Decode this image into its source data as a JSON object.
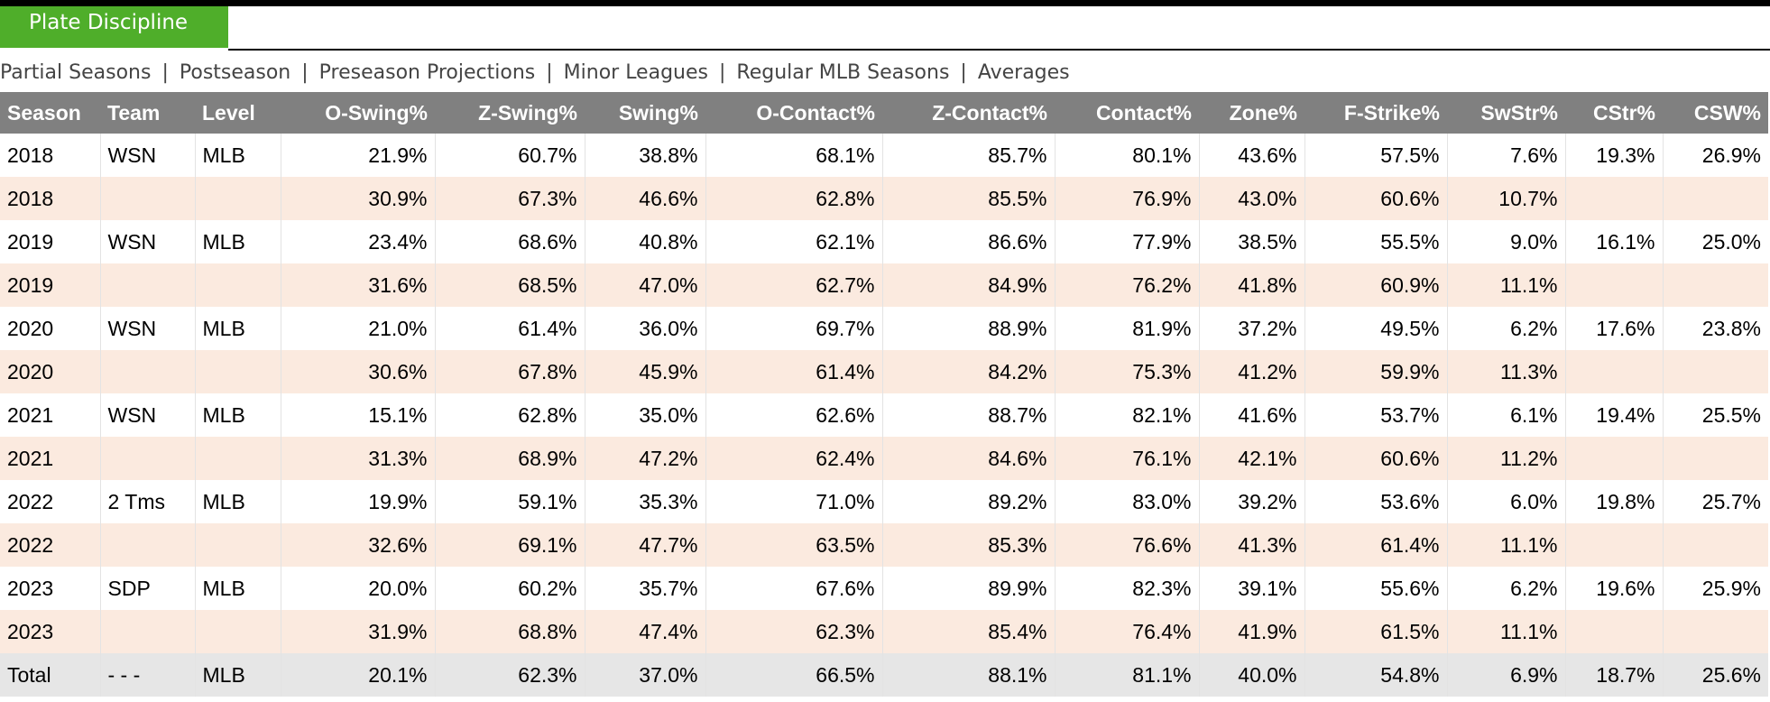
{
  "section": {
    "title": "Plate Discipline"
  },
  "filters": [
    {
      "label": "Partial Seasons"
    },
    {
      "label": "Postseason"
    },
    {
      "label": "Preseason Projections"
    },
    {
      "label": "Minor Leagues"
    },
    {
      "label": "Regular MLB Seasons"
    },
    {
      "label": "Averages"
    }
  ],
  "filter_separator": "|",
  "table": {
    "columns": [
      {
        "key": "season",
        "label": "Season",
        "align": "l"
      },
      {
        "key": "team",
        "label": "Team",
        "align": "l"
      },
      {
        "key": "level",
        "label": "Level",
        "align": "l"
      },
      {
        "key": "o_swing",
        "label": "O-Swing%",
        "align": "r"
      },
      {
        "key": "z_swing",
        "label": "Z-Swing%",
        "align": "r"
      },
      {
        "key": "swing",
        "label": "Swing%",
        "align": "r"
      },
      {
        "key": "o_contact",
        "label": "O-Contact%",
        "align": "r"
      },
      {
        "key": "z_contact",
        "label": "Z-Contact%",
        "align": "r"
      },
      {
        "key": "contact",
        "label": "Contact%",
        "align": "r"
      },
      {
        "key": "zone",
        "label": "Zone%",
        "align": "r"
      },
      {
        "key": "f_strike",
        "label": "F-Strike%",
        "align": "r"
      },
      {
        "key": "swstr",
        "label": "SwStr%",
        "align": "r"
      },
      {
        "key": "cstr",
        "label": "CStr%",
        "align": "r"
      },
      {
        "key": "csw",
        "label": "CSW%",
        "align": "r"
      }
    ],
    "rows": [
      {
        "style": "white",
        "cells": [
          "2018",
          "WSN",
          "MLB",
          "21.9%",
          "60.7%",
          "38.8%",
          "68.1%",
          "85.7%",
          "80.1%",
          "43.6%",
          "57.5%",
          "7.6%",
          "19.3%",
          "26.9%"
        ]
      },
      {
        "style": "peach",
        "cells": [
          "2018",
          "",
          "",
          "30.9%",
          "67.3%",
          "46.6%",
          "62.8%",
          "85.5%",
          "76.9%",
          "43.0%",
          "60.6%",
          "10.7%",
          "",
          ""
        ]
      },
      {
        "style": "white",
        "cells": [
          "2019",
          "WSN",
          "MLB",
          "23.4%",
          "68.6%",
          "40.8%",
          "62.1%",
          "86.6%",
          "77.9%",
          "38.5%",
          "55.5%",
          "9.0%",
          "16.1%",
          "25.0%"
        ]
      },
      {
        "style": "peach",
        "cells": [
          "2019",
          "",
          "",
          "31.6%",
          "68.5%",
          "47.0%",
          "62.7%",
          "84.9%",
          "76.2%",
          "41.8%",
          "60.9%",
          "11.1%",
          "",
          ""
        ]
      },
      {
        "style": "white",
        "cells": [
          "2020",
          "WSN",
          "MLB",
          "21.0%",
          "61.4%",
          "36.0%",
          "69.7%",
          "88.9%",
          "81.9%",
          "37.2%",
          "49.5%",
          "6.2%",
          "17.6%",
          "23.8%"
        ]
      },
      {
        "style": "peach",
        "cells": [
          "2020",
          "",
          "",
          "30.6%",
          "67.8%",
          "45.9%",
          "61.4%",
          "84.2%",
          "75.3%",
          "41.2%",
          "59.9%",
          "11.3%",
          "",
          ""
        ]
      },
      {
        "style": "white",
        "cells": [
          "2021",
          "WSN",
          "MLB",
          "15.1%",
          "62.8%",
          "35.0%",
          "62.6%",
          "88.7%",
          "82.1%",
          "41.6%",
          "53.7%",
          "6.1%",
          "19.4%",
          "25.5%"
        ]
      },
      {
        "style": "peach",
        "cells": [
          "2021",
          "",
          "",
          "31.3%",
          "68.9%",
          "47.2%",
          "62.4%",
          "84.6%",
          "76.1%",
          "42.1%",
          "60.6%",
          "11.2%",
          "",
          ""
        ]
      },
      {
        "style": "white",
        "cells": [
          "2022",
          "2 Tms",
          "MLB",
          "19.9%",
          "59.1%",
          "35.3%",
          "71.0%",
          "89.2%",
          "83.0%",
          "39.2%",
          "53.6%",
          "6.0%",
          "19.8%",
          "25.7%"
        ]
      },
      {
        "style": "peach",
        "cells": [
          "2022",
          "",
          "",
          "32.6%",
          "69.1%",
          "47.7%",
          "63.5%",
          "85.3%",
          "76.6%",
          "41.3%",
          "61.4%",
          "11.1%",
          "",
          ""
        ]
      },
      {
        "style": "white",
        "cells": [
          "2023",
          "SDP",
          "MLB",
          "20.0%",
          "60.2%",
          "35.7%",
          "67.6%",
          "89.9%",
          "82.3%",
          "39.1%",
          "55.6%",
          "6.2%",
          "19.6%",
          "25.9%"
        ]
      },
      {
        "style": "peach",
        "cells": [
          "2023",
          "",
          "",
          "31.9%",
          "68.8%",
          "47.4%",
          "62.3%",
          "85.4%",
          "76.4%",
          "41.9%",
          "61.5%",
          "11.1%",
          "",
          ""
        ]
      },
      {
        "style": "total",
        "cells": [
          "Total",
          "- - -",
          "MLB",
          "20.1%",
          "62.3%",
          "37.0%",
          "66.5%",
          "88.1%",
          "81.1%",
          "40.0%",
          "54.8%",
          "6.9%",
          "18.7%",
          "25.6%"
        ]
      }
    ]
  }
}
